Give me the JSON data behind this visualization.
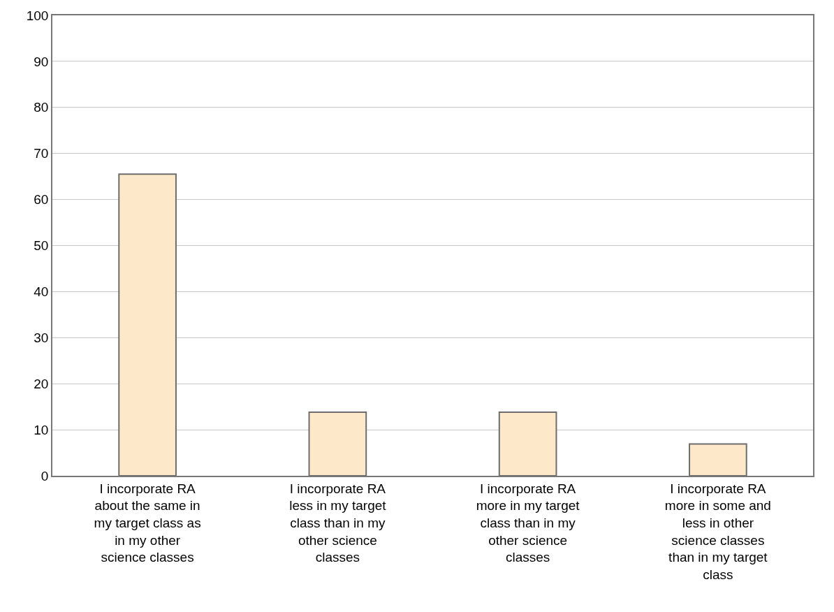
{
  "chart_data": {
    "type": "bar",
    "categories": [
      "I incorporate RA about the same in my target class as in my other science classes",
      "I incorporate RA less in my target class than in my other science classes",
      "I incorporate RA more in my target class than in my other science classes",
      "I incorporate RA more in some and less in other science classes than in my target class"
    ],
    "values": [
      65.5,
      13.8,
      13.8,
      6.9
    ],
    "color": "#fde9c9",
    "ylim": [
      0,
      100
    ],
    "yticks": [
      0,
      10,
      20,
      30,
      40,
      50,
      60,
      70,
      80,
      90,
      100
    ],
    "grid": "y"
  }
}
